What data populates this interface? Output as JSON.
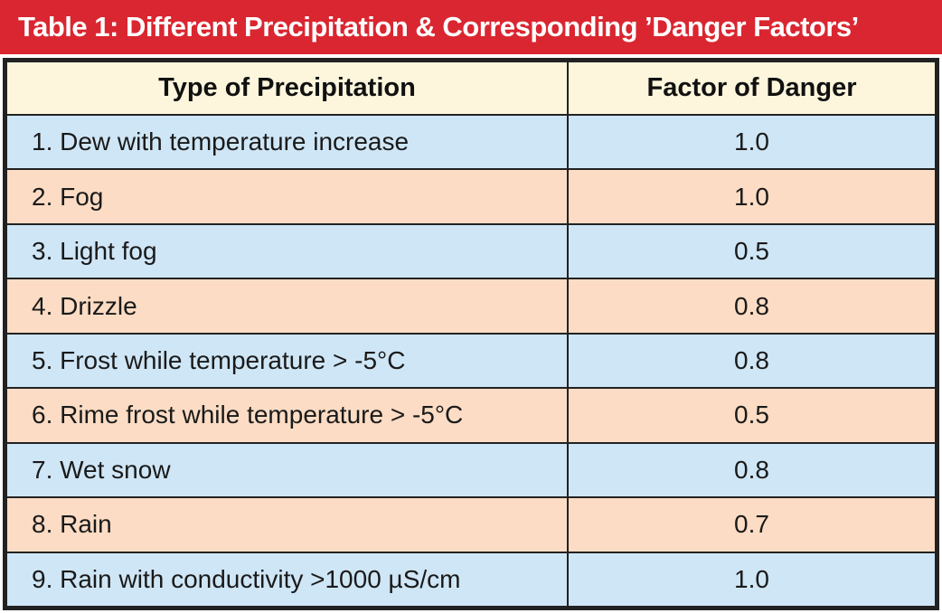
{
  "title": "Table 1: Different Precipitation & Corresponding ’Danger Factors’",
  "colors": {
    "title_bg": "#da2630",
    "header_bg": "#fdf6dc",
    "row_blue": "#cfe6f6",
    "row_peach": "#fcdcc4",
    "border": "#222222"
  },
  "table": {
    "headers": [
      "Type of Precipitation",
      "Factor of Danger"
    ],
    "rows": [
      {
        "type": "1. Dew with temperature increase",
        "factor": "1.0"
      },
      {
        "type": "2. Fog",
        "factor": "1.0"
      },
      {
        "type": "3. Light fog",
        "factor": "0.5"
      },
      {
        "type": "4. Drizzle",
        "factor": "0.8"
      },
      {
        "type": "5. Frost while temperature > -5°C",
        "factor": "0.8"
      },
      {
        "type": "6. Rime frost while temperature > -5°C",
        "factor": "0.5"
      },
      {
        "type": "7. Wet snow",
        "factor": "0.8"
      },
      {
        "type": "8. Rain",
        "factor": "0.7"
      },
      {
        "type": "9. Rain with conductivity >1000 µS/cm",
        "factor": "1.0"
      }
    ]
  }
}
